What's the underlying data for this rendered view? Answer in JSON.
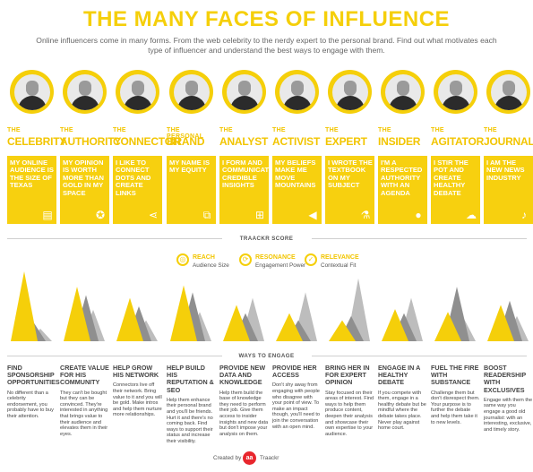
{
  "title": "THE MANY FACES OF INFLUENCE",
  "subtitle": "Online influencers come in many forms. From the web celebrity to the nerdy expert to the personal brand. Find out what motivates each type of influencer and understand the best ways to engage with them.",
  "colors": {
    "accent": "#f5cf0a",
    "gray": "#a3a3a3",
    "text": "#444444"
  },
  "types": [
    {
      "prefix": "THE",
      "name": "CELEBRITY",
      "quote": "My online audience is the size of Texas",
      "icon": "clapperboard-icon"
    },
    {
      "prefix": "THE",
      "name": "AUTHORITY",
      "quote": "My opinion is worth more than gold in my space",
      "icon": "medal-icon"
    },
    {
      "prefix": "THE",
      "name": "CONNECTOR",
      "quote": "I like to connect dots and create links",
      "icon": "network-icon"
    },
    {
      "prefix": "THE PERSONAL",
      "name": "BRAND",
      "quote": "My name is my equity",
      "icon": "crop-icon"
    },
    {
      "prefix": "THE",
      "name": "ANALYST",
      "quote": "I form and communicate credible insights",
      "icon": "flowchart-icon"
    },
    {
      "prefix": "THE",
      "name": "ACTIVIST",
      "quote": "My beliefs make me move mountains",
      "icon": "megaphone-icon"
    },
    {
      "prefix": "THE",
      "name": "EXPERT",
      "quote": "I wrote the textbook on my subject",
      "icon": "flask-icon"
    },
    {
      "prefix": "THE",
      "name": "INSIDER",
      "quote": "I'm a respected authority with an agenda",
      "icon": "keyhole-icon"
    },
    {
      "prefix": "THE",
      "name": "AGITATOR",
      "quote": "I stir the pot and create healthy debate",
      "icon": "storm-cloud-icon"
    },
    {
      "prefix": "THE",
      "name": "JOURNALIST",
      "quote": "I am the new news industry",
      "icon": "microphone-icon"
    }
  ],
  "score": {
    "title": "TRAACKR SCORE",
    "legend": [
      {
        "name": "REACH",
        "sub": "Audience Size",
        "icon": "reach-icon"
      },
      {
        "name": "RESONANCE",
        "sub": "Engagement Power",
        "icon": "resonance-icon"
      },
      {
        "name": "RELEVANCE",
        "sub": "Contextual Fit",
        "icon": "relevance-icon"
      }
    ],
    "bars": [
      {
        "reach": 1.0,
        "resonance": 0.28,
        "relevance": 0.18
      },
      {
        "reach": 0.78,
        "resonance": 0.66,
        "relevance": 0.45
      },
      {
        "reach": 0.62,
        "resonance": 0.5,
        "relevance": 0.3
      },
      {
        "reach": 0.8,
        "resonance": 0.7,
        "relevance": 0.42
      },
      {
        "reach": 0.52,
        "resonance": 0.4,
        "relevance": 0.62
      },
      {
        "reach": 0.4,
        "resonance": 0.3,
        "relevance": 0.7
      },
      {
        "reach": 0.3,
        "resonance": 0.36,
        "relevance": 0.9
      },
      {
        "reach": 0.46,
        "resonance": 0.4,
        "relevance": 0.62
      },
      {
        "reach": 0.42,
        "resonance": 0.78,
        "relevance": 0.32
      },
      {
        "reach": 0.52,
        "resonance": 0.58,
        "relevance": 0.36
      }
    ]
  },
  "engage": {
    "title": "WAYS TO ENGAGE",
    "items": [
      {
        "head": "FIND SPONSORSHIP OPPORTUNITIES",
        "body": "No different than a celebrity endorsement, you probably have to buy their attention."
      },
      {
        "head": "CREATE VALUE FOR HIS COMMUNITY",
        "body": "They can't be bought but they can be convinced. They're interested in anything that brings value to their audience and elevates them in their eyes."
      },
      {
        "head": "HELP GROW HIS NETWORK",
        "body": "Connectors live off their network. Bring value to it and you will be gold. Make intros and help them nurture more relationships."
      },
      {
        "head": "HELP BUILD HIS REPUTATION & SEO",
        "body": "Help them enhance their personal brand and you'll be friends. Hurt it and there's no coming back. Find ways to support their status and increase their visibility."
      },
      {
        "head": "PROVIDE NEW DATA AND KNOWLEDGE",
        "body": "Help them build the base of knowledge they need to perform their job. Give them access to insider insights and new data but don't impose your analysis on them."
      },
      {
        "head": "PROVIDE HER ACCESS",
        "body": "Don't shy away from engaging with people who disagree with your point of view. To make an impact though, you'll need to join the conversation with an open mind."
      },
      {
        "head": "BRING HER IN FOR EXPERT OPINION",
        "body": "Stay focused on their areas of interest. Find ways to help them produce content, deepen their analysis and showcase their own expertise to your audience."
      },
      {
        "head": "ENGAGE IN A HEALTHY DEBATE",
        "body": "If you compete with them, engage in a healthy debate but be mindful where the debate takes place. Never play against home court."
      },
      {
        "head": "FUEL THE FIRE WITH SUBSTANCE",
        "body": "Challenge them but don't disrespect them. Your purpose is to further the debate and help them take it to new levels."
      },
      {
        "head": "BOOST READERSHIP WITH EXCLUSIVES",
        "body": "Engage with them the same way you engage a good old journalist: with an interesting, exclusive, and timely story."
      }
    ]
  },
  "credit": {
    "prefix": "Created by",
    "logo": "aa",
    "name": "Traackr"
  }
}
